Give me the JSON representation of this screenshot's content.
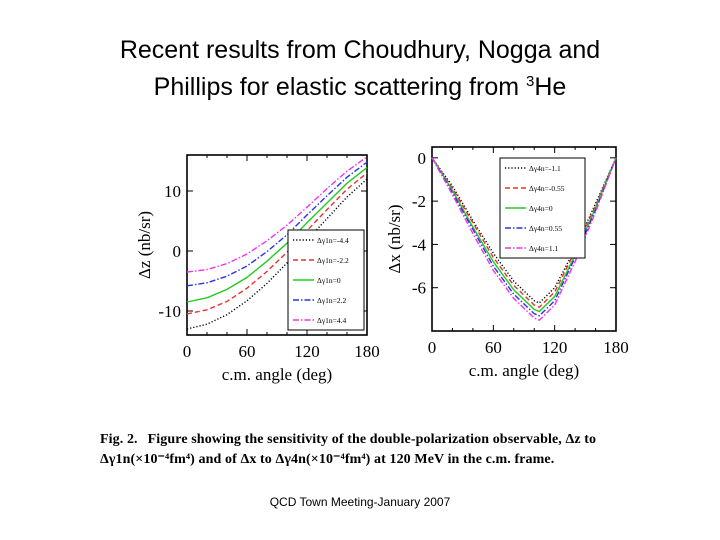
{
  "slide": {
    "title_line1": "Recent results from Choudhury, Nogga and",
    "title_line2_pre": "Phillips for elastic scattering from ",
    "title_sup": "3",
    "title_line2_post": "He",
    "footer": "QCD Town Meeting-January 2007"
  },
  "caption": {
    "figno": "Fig. 2.",
    "line1": "Figure showing the sensitivity of the double-polarization observable, Δz to",
    "line2": "Δγ1n(×10⁻⁴fm⁴) and of Δx to Δγ4n(×10⁻⁴fm⁴) at 120 MeV in the c.m. frame."
  },
  "colors": {
    "black": "#000000",
    "red": "#e8322c",
    "green": "#22cc22",
    "blue": "#2a35e0",
    "magenta": "#ee33ee"
  },
  "chart_data": [
    {
      "type": "line",
      "ylabel": "Δz (nb/sr)",
      "xlabel": "c.m. angle (deg)",
      "xlim": [
        0,
        180
      ],
      "ylim": [
        -14,
        16
      ],
      "xticks": [
        "0",
        "60",
        "120",
        "180"
      ],
      "yticks": [
        "-10",
        "0",
        "10"
      ],
      "xtick_values": [
        0,
        60,
        120,
        180
      ],
      "ytick_values": [
        -10,
        0,
        10
      ],
      "legend_position": "lower-right",
      "x": [
        0,
        20,
        40,
        60,
        80,
        100,
        120,
        140,
        160,
        180
      ],
      "series": [
        {
          "name": "Δγ1n=-4.4",
          "color": "#000000",
          "dash": "dotted",
          "values": [
            -13.0,
            -12.2,
            -10.6,
            -8.3,
            -5.4,
            -2.0,
            1.8,
            5.4,
            9.0,
            12.0
          ]
        },
        {
          "name": "Δγ1n=-2.2",
          "color": "#e8322c",
          "dash": "dashed",
          "values": [
            -10.5,
            -9.8,
            -8.4,
            -6.2,
            -3.4,
            -0.2,
            3.4,
            6.9,
            10.3,
            13.0
          ]
        },
        {
          "name": "Δγ1n=0",
          "color": "#22cc22",
          "dash": "solid",
          "values": [
            -8.5,
            -7.8,
            -6.4,
            -4.4,
            -1.7,
            1.3,
            4.7,
            8.0,
            11.3,
            13.9
          ]
        },
        {
          "name": "Δγ1n=2.2",
          "color": "#2a35e0",
          "dash": "dashdot",
          "values": [
            -5.8,
            -5.3,
            -4.2,
            -2.5,
            -0.1,
            2.7,
            6.0,
            9.2,
            12.3,
            14.8
          ]
        },
        {
          "name": "Δγ1n=4.4",
          "color": "#ee33ee",
          "dash": "dashdot",
          "values": [
            -3.5,
            -3.1,
            -2.1,
            -0.5,
            1.7,
            4.3,
            7.3,
            10.4,
            13.3,
            15.7
          ]
        }
      ]
    },
    {
      "type": "line",
      "ylabel": "Δx (nb/sr)",
      "xlabel": "c.m. angle (deg)",
      "xlim": [
        0,
        180
      ],
      "ylim": [
        -8,
        0.5
      ],
      "xticks": [
        "0",
        "60",
        "120",
        "180"
      ],
      "yticks": [
        "-6",
        "-4",
        "-2",
        "0"
      ],
      "xtick_values": [
        0,
        60,
        120,
        180
      ],
      "ytick_values": [
        -6,
        -4,
        -2,
        0
      ],
      "legend_position": "top-right",
      "x": [
        0,
        20,
        40,
        60,
        80,
        100,
        105,
        120,
        140,
        160,
        180
      ],
      "series": [
        {
          "name": "Δγ4n=-1.1",
          "color": "#000000",
          "dash": "dotted",
          "values": [
            0,
            -1.3,
            -2.9,
            -4.4,
            -5.7,
            -6.6,
            -6.7,
            -6.0,
            -4.2,
            -2.1,
            0
          ]
        },
        {
          "name": "Δγ4n=-0.55",
          "color": "#e8322c",
          "dash": "dashed",
          "values": [
            0,
            -1.4,
            -3.0,
            -4.6,
            -5.9,
            -6.8,
            -6.9,
            -6.2,
            -4.3,
            -2.2,
            0
          ]
        },
        {
          "name": "Δγ4n=0",
          "color": "#22cc22",
          "dash": "solid",
          "values": [
            0,
            -1.5,
            -3.2,
            -4.8,
            -6.1,
            -7.0,
            -7.1,
            -6.4,
            -4.5,
            -2.3,
            0
          ]
        },
        {
          "name": "Δγ4n=0.55",
          "color": "#2a35e0",
          "dash": "dashdot",
          "values": [
            0,
            -1.6,
            -3.3,
            -5.0,
            -6.3,
            -7.2,
            -7.3,
            -6.6,
            -4.6,
            -2.4,
            0
          ]
        },
        {
          "name": "Δγ4n=1.1",
          "color": "#ee33ee",
          "dash": "dashdot",
          "values": [
            0,
            -1.7,
            -3.5,
            -5.2,
            -6.5,
            -7.4,
            -7.5,
            -6.8,
            -4.8,
            -2.5,
            0
          ]
        }
      ]
    }
  ]
}
